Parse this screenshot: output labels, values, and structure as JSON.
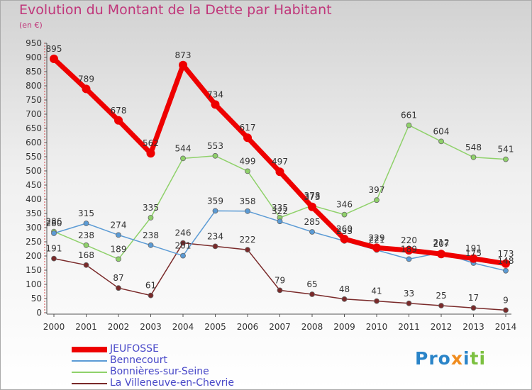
{
  "chart_data": {
    "type": "line",
    "title": "Evolution du Montant de la Dette par Habitant",
    "unit_label": "(en €)",
    "x": [
      "2000",
      "2001",
      "2002",
      "2003",
      "2004",
      "2005",
      "2006",
      "2007",
      "2008",
      "2009",
      "2010",
      "2011",
      "2012",
      "2013",
      "2014"
    ],
    "yticks": [
      "0",
      "50",
      "100",
      "150",
      "200",
      "250",
      "300",
      "350",
      "400",
      "450",
      "500",
      "550",
      "600",
      "650",
      "700",
      "750",
      "800",
      "850",
      "900",
      "950"
    ],
    "ylim": [
      0,
      950
    ],
    "grid": false,
    "legend_position": "bottom-left",
    "series": [
      {
        "name": "JEUFOSSE",
        "color": "#ee0000",
        "values": [
          895,
          789,
          678,
          562,
          873,
          734,
          617,
          497,
          373,
          260,
          229,
          220,
          207,
          191,
          173
        ]
      },
      {
        "name": "Bennecourt",
        "color": "#5b9bd5",
        "values": [
          280,
          315,
          274,
          238,
          201,
          359,
          358,
          322,
          285,
          253,
          221,
          189,
          212,
          175,
          148
        ]
      },
      {
        "name": "Bonnières-sur-Seine",
        "color": "#8fd16a",
        "values": [
          286,
          238,
          189,
          335,
          544,
          553,
          499,
          335,
          378,
          346,
          397,
          661,
          604,
          548,
          541
        ]
      },
      {
        "name": "La Villeneuve-en-Chevrie",
        "color": "#7a2a2a",
        "values": [
          191,
          168,
          87,
          61,
          246,
          234,
          222,
          79,
          65,
          48,
          41,
          33,
          25,
          17,
          9
        ]
      }
    ]
  },
  "logo": {
    "part1": "Pro",
    "part2": "x",
    "part3": "i",
    "part4": "ti"
  }
}
